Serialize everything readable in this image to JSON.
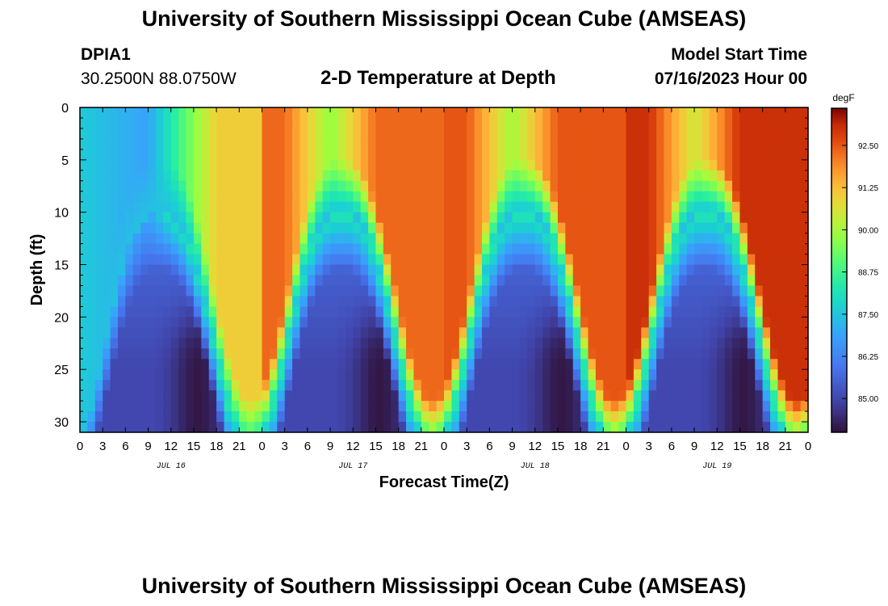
{
  "header": {
    "title": "University of Southern Mississippi Ocean Cube (AMSEAS)",
    "station": "DPIA1",
    "coords": "30.2500N  88.0750W",
    "plot_title": "2-D Temperature at Depth",
    "model_label": "Model Start Time",
    "model_time": "07/16/2023 Hour 00"
  },
  "footer": {
    "title": "University of Southern Mississippi Ocean Cube (AMSEAS)"
  },
  "chart_data": {
    "type": "heatmap",
    "title": "2-D Temperature at Depth",
    "xlabel": "Forecast Time(Z)",
    "ylabel": "Depth (ft)",
    "x_range_hours": [
      0,
      96
    ],
    "x_ticks": [
      "0",
      "3",
      "6",
      "9",
      "12",
      "15",
      "18",
      "21",
      "0",
      "3",
      "6",
      "9",
      "12",
      "15",
      "18",
      "21",
      "0",
      "3",
      "6",
      "9",
      "12",
      "15",
      "18",
      "21",
      "0",
      "3",
      "6",
      "9",
      "12",
      "15",
      "18",
      "21",
      "0"
    ],
    "date_labels": [
      {
        "label": "JUL 16",
        "hour": 12
      },
      {
        "label": "JUL 17",
        "hour": 36
      },
      {
        "label": "JUL 18",
        "hour": 60
      },
      {
        "label": "JUL 19",
        "hour": 84
      }
    ],
    "y_range_ft": [
      0,
      31
    ],
    "y_ticks": [
      0,
      5,
      10,
      15,
      20,
      25,
      30
    ],
    "colorbar": {
      "unit": "degF",
      "range": [
        84.0,
        93.6
      ],
      "ticks": [
        "85.00",
        "86.25",
        "87.50",
        "88.75",
        "90.00",
        "91.25",
        "92.50"
      ],
      "tick_values": [
        85.0,
        86.25,
        87.5,
        88.75,
        90.0,
        91.25,
        92.5
      ]
    },
    "grid": false,
    "description_note": "Warm layer (90-93 degF) above ~10-16 ft; cool (84-86 degF) water below, tidal-like oscillation with ~24h period; troughs of warm layer reach bottom near hours 23, 48, 73.",
    "min_temp_degF": 84.0,
    "max_temp_degF": 93.6
  }
}
